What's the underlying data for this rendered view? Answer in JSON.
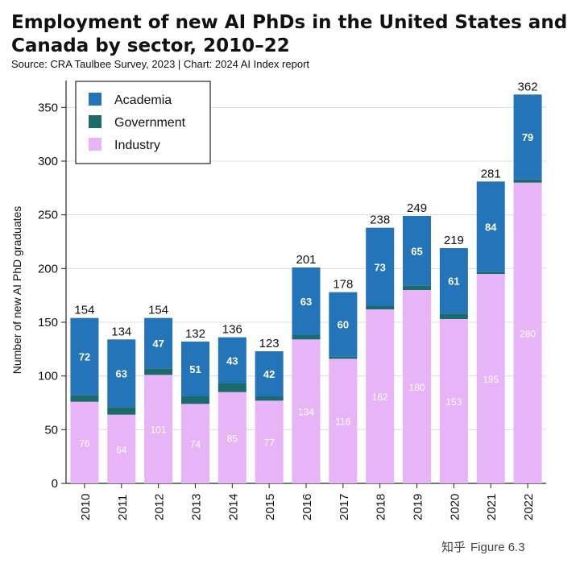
{
  "chart_data": {
    "type": "bar",
    "stacked": true,
    "title": "Employment of new AI PhDs in the United States and Canada by sector, 2010–22",
    "subtitle": "Source: CRA Taulbee Survey, 2023 | Chart: 2024 AI Index report",
    "xlabel": "",
    "ylabel": "Number of new AI PhD graduates",
    "ylim": [
      0,
      375
    ],
    "yticks": [
      0,
      50,
      100,
      150,
      200,
      250,
      300,
      350
    ],
    "grid": true,
    "legend_position": "top-left",
    "categories": [
      "2010",
      "2011",
      "2012",
      "2013",
      "2014",
      "2015",
      "2016",
      "2017",
      "2018",
      "2019",
      "2020",
      "2021",
      "2022"
    ],
    "series": [
      {
        "name": "Industry",
        "color": "#e8b4f8",
        "values": [
          76,
          64,
          101,
          74,
          85,
          77,
          134,
          116,
          162,
          180,
          153,
          195,
          280
        ]
      },
      {
        "name": "Government",
        "color": "#1b6b6b",
        "values": [
          6,
          7,
          6,
          7,
          8,
          4,
          4,
          2,
          3,
          4,
          5,
          2,
          3
        ]
      },
      {
        "name": "Academia",
        "color": "#2374b8",
        "values": [
          72,
          63,
          47,
          51,
          43,
          42,
          63,
          60,
          73,
          65,
          61,
          84,
          79
        ]
      }
    ],
    "totals": [
      154,
      134,
      154,
      132,
      136,
      123,
      201,
      178,
      238,
      249,
      219,
      281,
      362
    ],
    "legend_order": [
      "Academia",
      "Government",
      "Industry"
    ]
  },
  "watermark": {
    "site": "知乎",
    "text": "Figure 6.3"
  }
}
